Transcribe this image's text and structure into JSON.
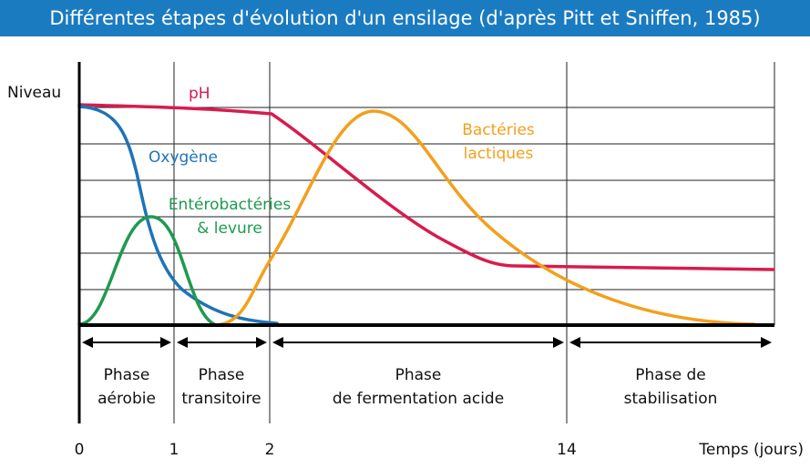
{
  "title": "Différentes étapes d'évolution d'un ensilage (d'après Pitt et Sniffen, 1985)",
  "chart_data": {
    "type": "line",
    "title": "Différentes étapes d'évolution d'un ensilage (d'après Pitt et Sniffen, 1985)",
    "ylabel": "Niveau",
    "xlabel": "Temps (jours)",
    "x_tick_labels": [
      "0",
      "1",
      "2",
      "14"
    ],
    "grid": true,
    "colors": {
      "ph": "#d81b4f",
      "oxygene": "#1f73b7",
      "enterobacteries": "#1e9a4f",
      "bacteries": "#f2a01c",
      "title_bar": "#1a7bc1"
    },
    "series": [
      {
        "key": "ph",
        "name": "pH",
        "label_lines": [
          "pH"
        ]
      },
      {
        "key": "oxygene",
        "name": "Oxygène",
        "label_lines": [
          "Oxygène"
        ]
      },
      {
        "key": "enterobacteries",
        "name": "Entérobactéries & levure",
        "label_lines": [
          "Entérobactéries",
          "& levure"
        ]
      },
      {
        "key": "bacteries",
        "name": "Bactéries lactiques",
        "label_lines": [
          "Bactéries",
          "lactiques"
        ]
      }
    ],
    "phases": [
      {
        "lines": [
          "Phase",
          "aérobie"
        ]
      },
      {
        "lines": [
          "Phase",
          "transitoire"
        ]
      },
      {
        "lines": [
          "Phase",
          "de fermentation acide"
        ]
      },
      {
        "lines": [
          "Phase de",
          "stabilisation"
        ]
      }
    ]
  }
}
